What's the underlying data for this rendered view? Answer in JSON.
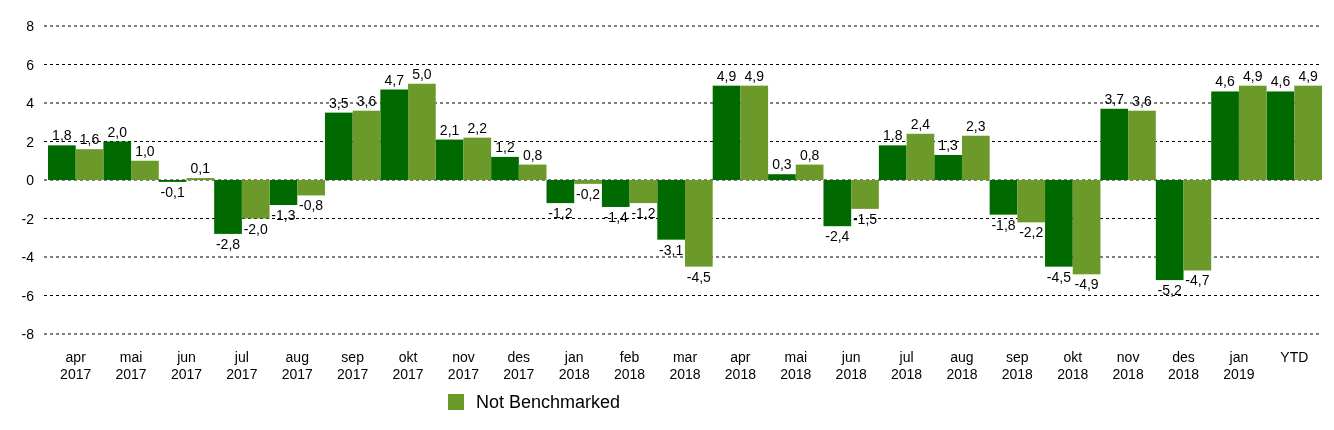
{
  "chart_data": {
    "type": "bar",
    "categories": [
      "apr 2017",
      "mai 2017",
      "jun 2017",
      "jul 2017",
      "aug 2017",
      "sep 2017",
      "okt 2017",
      "nov 2017",
      "des 2017",
      "jan 2018",
      "feb 2018",
      "mar 2018",
      "apr 2018",
      "mai 2018",
      "jun 2018",
      "jul 2018",
      "aug 2018",
      "sep 2018",
      "okt 2018",
      "nov 2018",
      "des 2018",
      "jan 2019",
      "YTD"
    ],
    "series": [
      {
        "color": "#006a00",
        "values": [
          1.8,
          2.0,
          -0.1,
          -2.8,
          -1.3,
          3.5,
          4.7,
          2.1,
          1.2,
          -1.2,
          -1.4,
          -3.1,
          4.9,
          0.3,
          -2.4,
          1.8,
          1.3,
          -1.8,
          -4.5,
          3.7,
          -5.2,
          4.6,
          4.6
        ],
        "value_labels": [
          "1,8",
          "2,0",
          "-0,1",
          "-2,8",
          "-1,3",
          "3,5",
          "4,7",
          "2,1",
          "1,2",
          "-1,2",
          "-1,4",
          "-3,1",
          "4,9",
          "0,3",
          "-2,4",
          "1,8",
          "1,3",
          "-1,8",
          "-4,5",
          "3,7",
          "-5,2",
          "4,6",
          "4,6"
        ]
      },
      {
        "name": "Not Benchmarked",
        "color": "#6b9a2a",
        "values": [
          1.6,
          1.0,
          0.1,
          -2.0,
          -0.8,
          3.6,
          5.0,
          2.2,
          0.8,
          -0.2,
          -1.2,
          -4.5,
          4.9,
          0.8,
          -1.5,
          2.4,
          2.3,
          -2.2,
          -4.9,
          3.6,
          -4.7,
          4.9,
          4.9
        ],
        "value_labels": [
          "1,6",
          "1,0",
          "0,1",
          "-2,0",
          "-0,8",
          "3,6",
          "5,0",
          "2,2",
          "0,8",
          "-0,2",
          "-1,2",
          "-4,5",
          "4,9",
          "0,8",
          "-1,5",
          "2,4",
          "2,3",
          "-2,2",
          "-4,9",
          "3,6",
          "-4,7",
          "4,9",
          "4,9"
        ]
      }
    ],
    "ylim": [
      -8,
      8
    ],
    "yticks": [
      -8,
      -6,
      -4,
      -2,
      0,
      2,
      4,
      6,
      8
    ],
    "grid": "y",
    "legend": "bottom left"
  }
}
